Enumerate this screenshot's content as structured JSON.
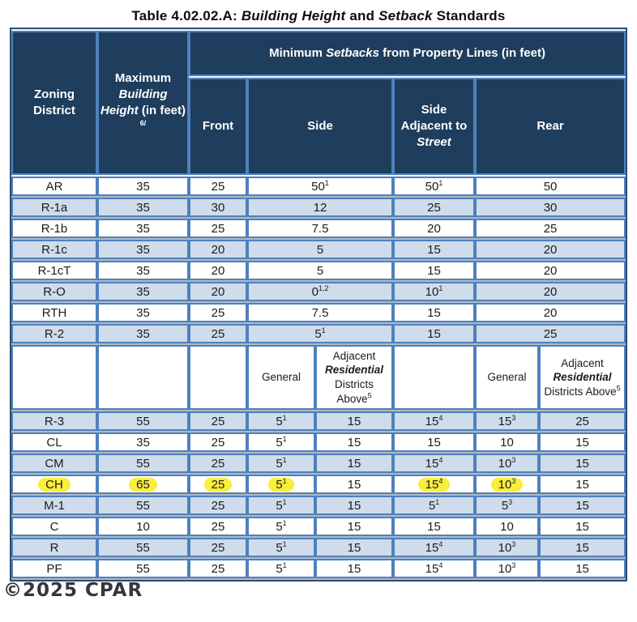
{
  "title": {
    "segments": [
      {
        "t": "Table 4.02.02.A: "
      },
      {
        "t": "Building Height",
        "i": 1
      },
      {
        "t": " and "
      },
      {
        "t": "Setback",
        "i": 1
      },
      {
        "t": " Standards"
      }
    ]
  },
  "watermark": "©2025 CPAR",
  "colors": {
    "header_bg": "#1f3d5c",
    "grid_border": "#4e81bd",
    "shaded_row": "#cfdcec",
    "highlight": "#f8ee3c",
    "header_text": "#ffffff",
    "body_text": "#1c1c1c"
  },
  "table": {
    "header": {
      "zoning_district": "Zoning District",
      "max_height_segments": [
        {
          "t": "Maximum "
        },
        {
          "t": "Building Height",
          "i": 1
        },
        {
          "t": " (in feet) "
        },
        {
          "t": "6/",
          "sup": 1
        }
      ],
      "setbacks_segments": [
        {
          "t": "Minimum "
        },
        {
          "t": "Setbacks",
          "i": 1
        },
        {
          "t": " from Property Lines (in feet)"
        }
      ],
      "front": "Front",
      "side": "Side",
      "side_adjacent_segments": [
        {
          "t": "Side Adjacent to "
        },
        {
          "t": "Street",
          "i": 1
        }
      ],
      "rear": "Rear"
    },
    "subheader": {
      "general": "General",
      "adjacent_segments": [
        {
          "t": "Adjacent "
        },
        {
          "t": "Residential",
          "bi": 1
        },
        {
          "t": " Districts Above"
        },
        {
          "t": "5",
          "sup": 1
        }
      ]
    },
    "upper_rows": [
      {
        "district": "AR",
        "cells": [
          "35",
          "25",
          "50^1",
          "50^1",
          "50"
        ],
        "shade": false
      },
      {
        "district": "R-1a",
        "cells": [
          "35",
          "30",
          "12",
          "25",
          "30"
        ],
        "shade": true
      },
      {
        "district": "R-1b",
        "cells": [
          "35",
          "25",
          "7.5",
          "20",
          "25"
        ],
        "shade": false
      },
      {
        "district": "R-1c",
        "cells": [
          "35",
          "20",
          "5",
          "15",
          "20"
        ],
        "shade": true
      },
      {
        "district": "R-1cT",
        "cells": [
          "35",
          "20",
          "5",
          "15",
          "20"
        ],
        "shade": false
      },
      {
        "district": "R-O",
        "cells": [
          "35",
          "20",
          "0^1,2",
          "10^1",
          "20"
        ],
        "shade": true
      },
      {
        "district": "RTH",
        "cells": [
          "35",
          "25",
          "7.5",
          "15",
          "20"
        ],
        "shade": false
      },
      {
        "district": "R-2",
        "cells": [
          "35",
          "25",
          "5^1",
          "15",
          "25"
        ],
        "shade": true
      }
    ],
    "lower_rows": [
      {
        "district": "R-3",
        "cells": [
          "55",
          "25",
          "5^1",
          "15",
          "15^4",
          "15^3",
          "25"
        ],
        "shade": true,
        "hl": []
      },
      {
        "district": "CL",
        "cells": [
          "35",
          "25",
          "5^1",
          "15",
          "15",
          "10",
          "15"
        ],
        "shade": false,
        "hl": []
      },
      {
        "district": "CM",
        "cells": [
          "55",
          "25",
          "5^1",
          "15",
          "15^4",
          "10^3",
          "15"
        ],
        "shade": true,
        "hl": []
      },
      {
        "district": "CH",
        "cells": [
          "65",
          "25",
          "5^1",
          "15",
          "15^4",
          "10^3",
          "15"
        ],
        "shade": false,
        "hl": [
          0,
          1,
          2,
          3,
          5,
          6
        ]
      },
      {
        "district": "M-1",
        "cells": [
          "55",
          "25",
          "5^1",
          "15",
          "5^1",
          "5^3",
          "15"
        ],
        "shade": true,
        "hl": []
      },
      {
        "district": "C",
        "cells": [
          "10",
          "25",
          "5^1",
          "15",
          "15",
          "10",
          "15"
        ],
        "shade": false,
        "hl": []
      },
      {
        "district": "R",
        "cells": [
          "55",
          "25",
          "5^1",
          "15",
          "15^4",
          "10^3",
          "15"
        ],
        "shade": true,
        "hl": []
      },
      {
        "district": "PF",
        "cells": [
          "55",
          "25",
          "5^1",
          "15",
          "15^4",
          "10^3",
          "15"
        ],
        "shade": false,
        "hl": []
      }
    ]
  }
}
